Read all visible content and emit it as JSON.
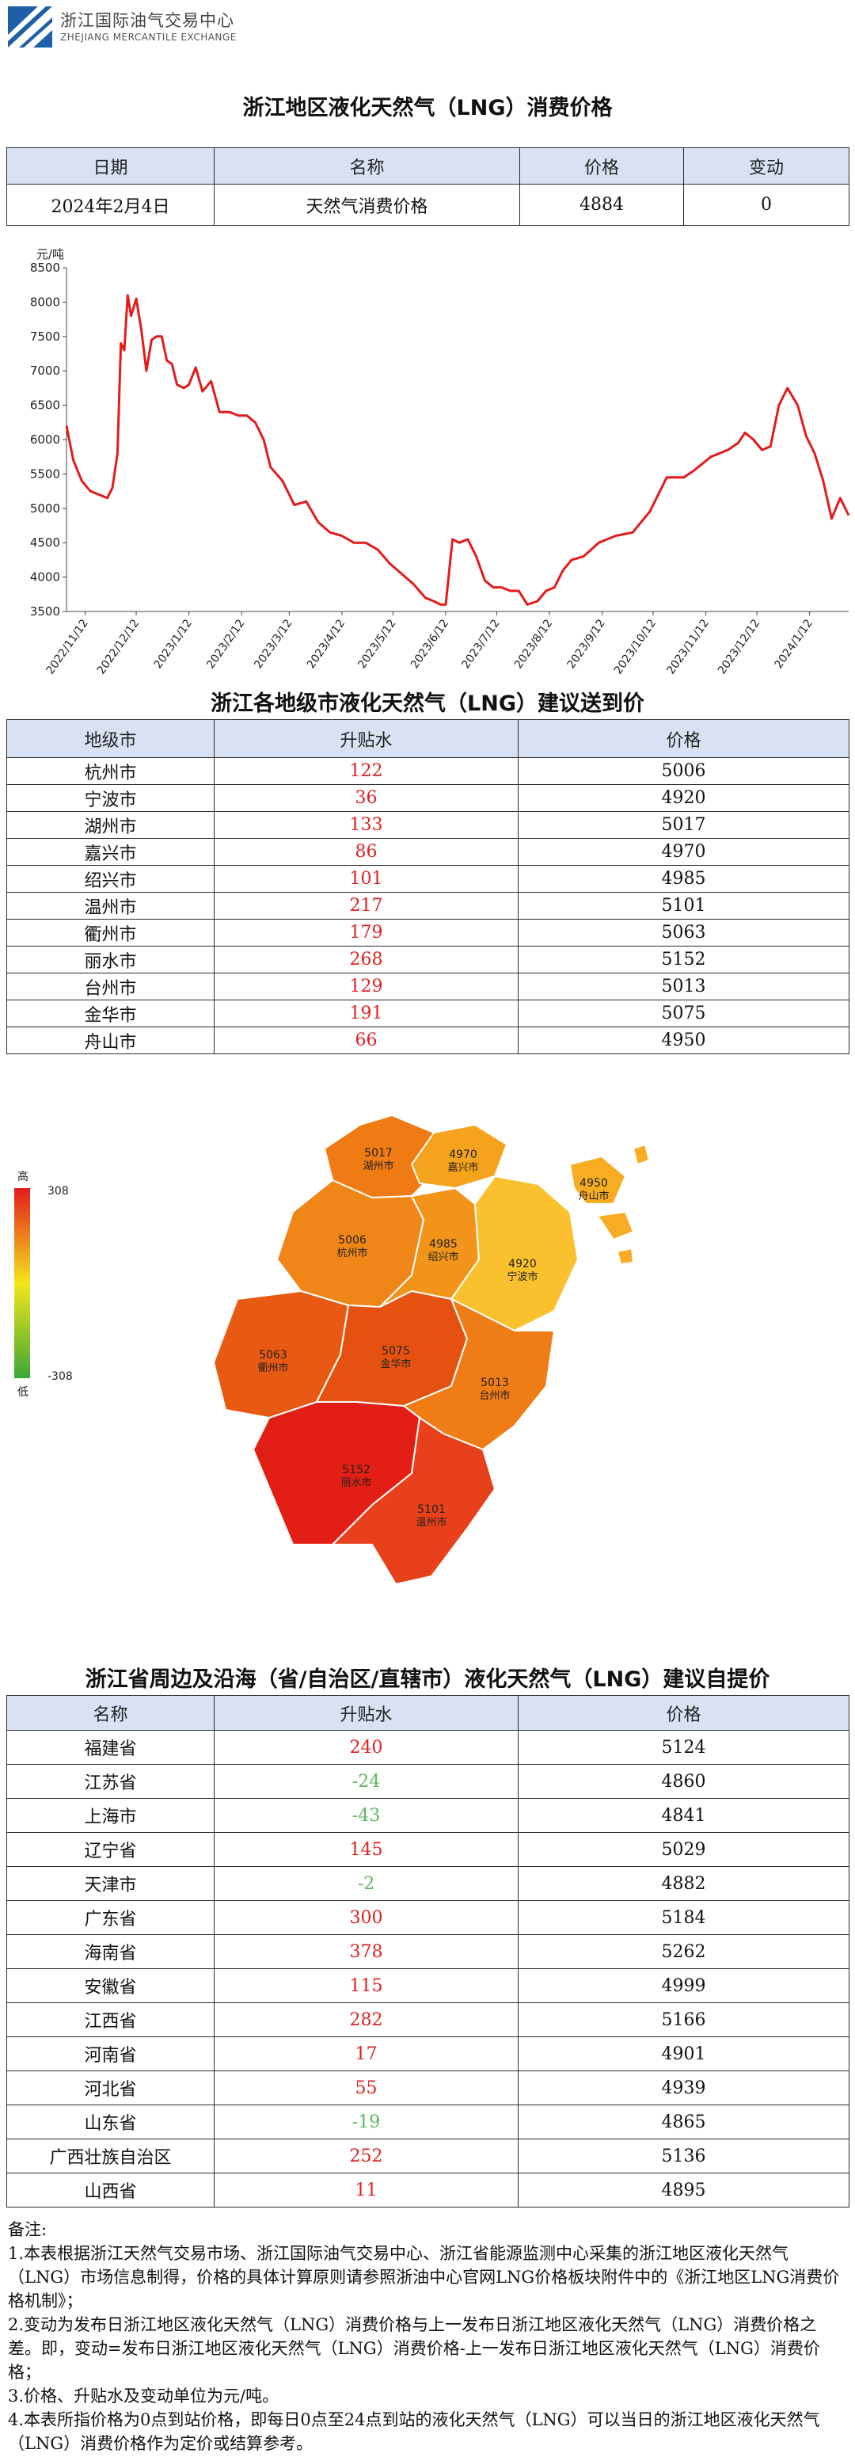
{
  "header": {
    "org_cn": "浙江国际油气交易中心",
    "org_en": "ZHEJIANG MERCANTILE EXCHANGE"
  },
  "titles": {
    "main": "浙江地区液化天然气（LNG）消费价格",
    "city": "浙江各地级市液化天然气（LNG）建议送到价",
    "province": "浙江省周边及沿海（省/自治区/直辖市）液化天然气（LNG）建议自提价"
  },
  "summary": {
    "headers": [
      "日期",
      "名称",
      "价格",
      "变动"
    ],
    "row": [
      "2024年2月4日",
      "天然气消费价格",
      "4884",
      "0"
    ]
  },
  "chart_data": {
    "type": "line",
    "ylabel": "元/吨",
    "ylim": [
      3500,
      8500
    ],
    "yticks": [
      3500,
      4000,
      4500,
      5000,
      5500,
      6000,
      6500,
      7000,
      7500,
      8000,
      8500
    ],
    "xticks": [
      "2022/11/12",
      "2022/12/12",
      "2023/1/12",
      "2023/2/12",
      "2023/3/12",
      "2023/4/12",
      "2023/5/12",
      "2023/6/12",
      "2023/7/12",
      "2023/8/12",
      "2023/9/12",
      "2023/10/12",
      "2023/11/12",
      "2023/12/12",
      "2024/1/12"
    ],
    "color": "#e31b1b",
    "grid": false,
    "x": [
      "2022/11/1",
      "2022/11/5",
      "2022/11/10",
      "2022/11/15",
      "2022/11/20",
      "2022/11/25",
      "2022/11/28",
      "2022/12/1",
      "2022/12/3",
      "2022/12/5",
      "2022/12/7",
      "2022/12/9",
      "2022/12/12",
      "2022/12/15",
      "2022/12/18",
      "2022/12/21",
      "2022/12/24",
      "2022/12/27",
      "2022/12/30",
      "2023/1/2",
      "2023/1/5",
      "2023/1/9",
      "2023/1/12",
      "2023/1/16",
      "2023/1/20",
      "2023/1/25",
      "2023/1/30",
      "2023/2/5",
      "2023/2/10",
      "2023/2/15",
      "2023/2/20",
      "2023/2/25",
      "2023/3/1",
      "2023/3/8",
      "2023/3/15",
      "2023/3/22",
      "2023/3/29",
      "2023/4/5",
      "2023/4/12",
      "2023/4/19",
      "2023/4/26",
      "2023/5/3",
      "2023/5/10",
      "2023/5/17",
      "2023/5/24",
      "2023/5/31",
      "2023/6/5",
      "2023/6/9",
      "2023/6/12",
      "2023/6/16",
      "2023/6/20",
      "2023/6/25",
      "2023/6/30",
      "2023/7/5",
      "2023/7/10",
      "2023/7/15",
      "2023/7/20",
      "2023/7/25",
      "2023/7/30",
      "2023/8/5",
      "2023/8/10",
      "2023/8/15",
      "2023/8/20",
      "2023/8/25",
      "2023/9/1",
      "2023/9/10",
      "2023/9/20",
      "2023/9/30",
      "2023/10/10",
      "2023/10/20",
      "2023/10/30",
      "2023/11/5",
      "2023/11/15",
      "2023/11/25",
      "2023/12/1",
      "2023/12/5",
      "2023/12/10",
      "2023/12/15",
      "2023/12/20",
      "2023/12/25",
      "2023/12/30",
      "2024/1/5",
      "2024/1/10",
      "2024/1/15",
      "2024/1/20",
      "2024/1/25",
      "2024/1/30",
      "2024/2/4"
    ],
    "values": [
      6200,
      5700,
      5400,
      5250,
      5200,
      5150,
      5300,
      5800,
      7400,
      7300,
      8100,
      7800,
      8050,
      7600,
      7000,
      7450,
      7500,
      7500,
      7150,
      7100,
      6800,
      6750,
      6800,
      7050,
      6700,
      6850,
      6400,
      6400,
      6350,
      6350,
      6250,
      6000,
      5600,
      5400,
      5050,
      5100,
      4800,
      4650,
      4600,
      4500,
      4500,
      4400,
      4200,
      4050,
      3900,
      3700,
      3650,
      3600,
      3600,
      4550,
      4500,
      4550,
      4300,
      3950,
      3850,
      3850,
      3800,
      3800,
      3600,
      3650,
      3800,
      3850,
      4100,
      4250,
      4300,
      4500,
      4600,
      4650,
      4950,
      5450,
      5450,
      5550,
      5750,
      5850,
      5950,
      6100,
      6000,
      5850,
      5900,
      6500,
      6750,
      6500,
      6050,
      5800,
      5400,
      4850,
      5150,
      4900
    ]
  },
  "city_table": {
    "headers": [
      "地级市",
      "升贴水",
      "价格"
    ],
    "rows": [
      [
        "杭州市",
        "122",
        "5006"
      ],
      [
        "宁波市",
        "36",
        "4920"
      ],
      [
        "湖州市",
        "133",
        "5017"
      ],
      [
        "嘉兴市",
        "86",
        "4970"
      ],
      [
        "绍兴市",
        "101",
        "4985"
      ],
      [
        "温州市",
        "217",
        "5101"
      ],
      [
        "衢州市",
        "179",
        "5063"
      ],
      [
        "丽水市",
        "268",
        "5152"
      ],
      [
        "台州市",
        "129",
        "5013"
      ],
      [
        "金华市",
        "191",
        "5075"
      ],
      [
        "舟山市",
        "66",
        "4950"
      ]
    ]
  },
  "map": {
    "legend_high": "高",
    "legend_low": "低",
    "legend_max": "308",
    "legend_min": "-308",
    "regions": [
      {
        "name": "湖州市",
        "price": "5017",
        "color": "#f07a14"
      },
      {
        "name": "嘉兴市",
        "price": "4970",
        "color": "#f5a21c"
      },
      {
        "name": "杭州市",
        "price": "5006",
        "color": "#f08618"
      },
      {
        "name": "绍兴市",
        "price": "4985",
        "color": "#f29419"
      },
      {
        "name": "宁波市",
        "price": "4920",
        "color": "#fbc02d"
      },
      {
        "name": "舟山市",
        "price": "4950",
        "color": "#f7ac22"
      },
      {
        "name": "衢州市",
        "price": "5063",
        "color": "#e85a12"
      },
      {
        "name": "金华市",
        "price": "5075",
        "color": "#e55210"
      },
      {
        "name": "台州市",
        "price": "5013",
        "color": "#f07c15"
      },
      {
        "name": "丽水市",
        "price": "5152",
        "color": "#e31e14"
      },
      {
        "name": "温州市",
        "price": "5101",
        "color": "#e8401a"
      }
    ]
  },
  "province_table": {
    "headers": [
      "名称",
      "升贴水",
      "价格"
    ],
    "rows": [
      [
        "福建省",
        "240",
        "5124"
      ],
      [
        "江苏省",
        "-24",
        "4860"
      ],
      [
        "上海市",
        "-43",
        "4841"
      ],
      [
        "辽宁省",
        "145",
        "5029"
      ],
      [
        "天津市",
        "-2",
        "4882"
      ],
      [
        "广东省",
        "300",
        "5184"
      ],
      [
        "海南省",
        "378",
        "5262"
      ],
      [
        "安徽省",
        "115",
        "4999"
      ],
      [
        "江西省",
        "282",
        "5166"
      ],
      [
        "河南省",
        "17",
        "4901"
      ],
      [
        "河北省",
        "55",
        "4939"
      ],
      [
        "山东省",
        "-19",
        "4865"
      ],
      [
        "广西壮族自治区",
        "252",
        "5136"
      ],
      [
        "山西省",
        "11",
        "4895"
      ]
    ]
  },
  "notes": {
    "title": "备注:",
    "items": [
      "1.本表根据浙江天然气交易市场、浙江国际油气交易中心、浙江省能源监测中心采集的浙江地区液化天然气（LNG）市场信息制得，价格的具体计算原则请参照浙油中心官网LNG价格板块附件中的《浙江地区LNG消费价格机制》；",
      "2.变动为发布日浙江地区液化天然气（LNG）消费价格与上一发布日浙江地区液化天然气（LNG）消费价格之差。即，变动=发布日浙江地区液化天然气（LNG）消费价格-上一发布日浙江地区液化天然气（LNG）消费价格；",
      "3.价格、升贴水及变动单位为元/吨。",
      "4.本表所指价格为0点到站价格，即每日0点至24点到站的液化天然气（LNG）可以当日的浙江地区液化天然气（LNG）消费价格作为定价或结算参考。"
    ]
  }
}
